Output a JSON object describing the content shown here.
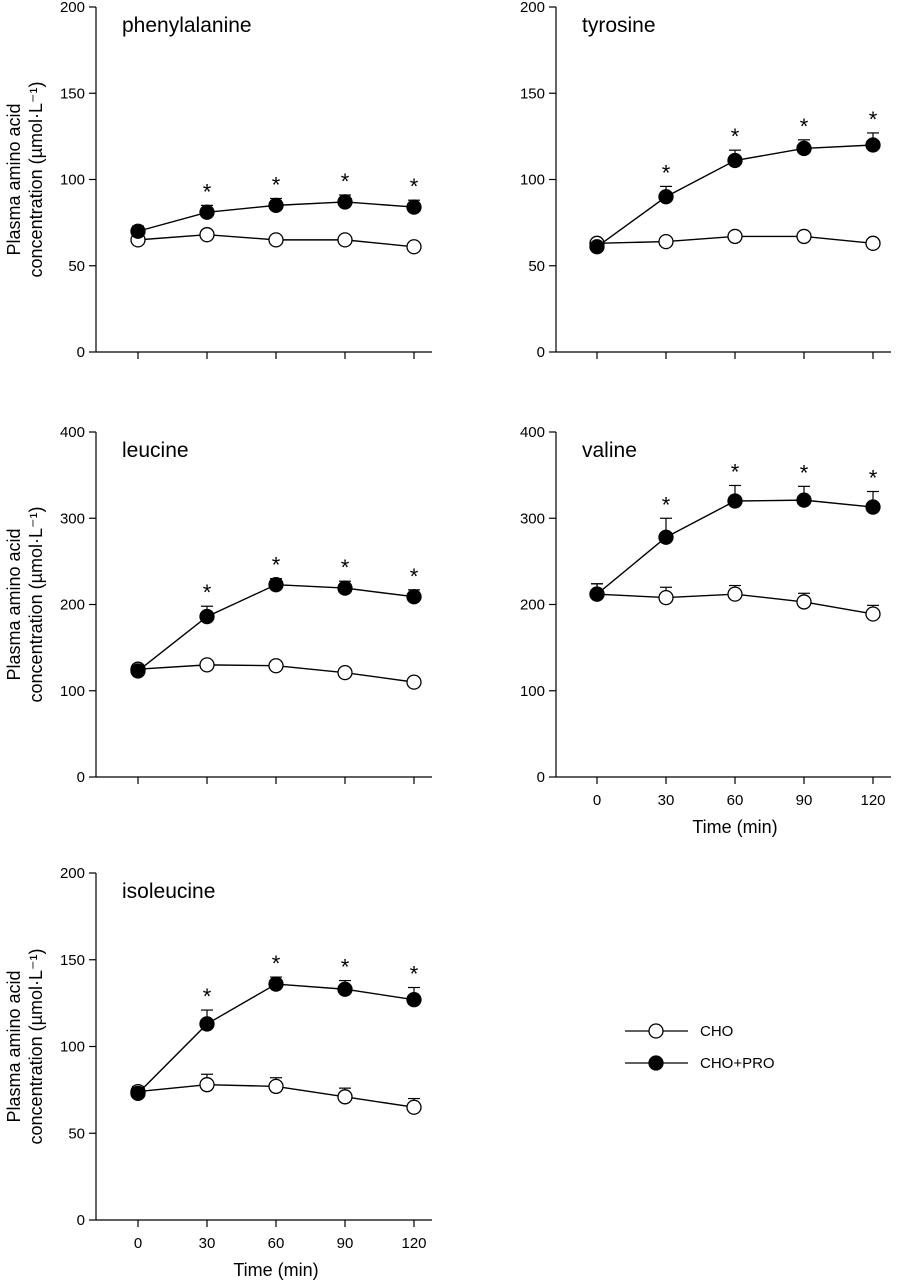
{
  "chart_data": [
    {
      "type": "line",
      "title": "phenylalanine",
      "x": [
        0,
        30,
        60,
        90,
        120
      ],
      "show_x_ticklabels": false,
      "xlabel": "",
      "ylabel": [
        "Plasma amino acid",
        "concentration (µmol·L⁻¹)"
      ],
      "ylim": [
        0,
        200
      ],
      "yticks": [
        0,
        50,
        100,
        150,
        200
      ],
      "series": [
        {
          "name": "CHO",
          "values": [
            65,
            68,
            65,
            65,
            61
          ],
          "err": [
            2,
            2,
            2,
            2,
            2
          ],
          "marker": "open"
        },
        {
          "name": "CHO+PRO",
          "values": [
            70,
            81,
            85,
            87,
            84
          ],
          "err": [
            3,
            4,
            4,
            4,
            4
          ],
          "marker": "filled"
        }
      ],
      "significant": [
        false,
        true,
        true,
        true,
        true
      ]
    },
    {
      "type": "line",
      "title": "tyrosine",
      "x": [
        0,
        30,
        60,
        90,
        120
      ],
      "show_x_ticklabels": false,
      "xlabel": "",
      "ylabel": [],
      "ylim": [
        0,
        200
      ],
      "yticks": [
        0,
        50,
        100,
        150,
        200
      ],
      "series": [
        {
          "name": "CHO",
          "values": [
            63,
            64,
            67,
            67,
            63
          ],
          "err": [
            2,
            2,
            2,
            2,
            2
          ],
          "marker": "open"
        },
        {
          "name": "CHO+PRO",
          "values": [
            61,
            90,
            111,
            118,
            120
          ],
          "err": [
            2,
            6,
            6,
            5,
            7
          ],
          "marker": "filled"
        }
      ],
      "significant": [
        false,
        true,
        true,
        true,
        true
      ]
    },
    {
      "type": "line",
      "title": "leucine",
      "x": [
        0,
        30,
        60,
        90,
        120
      ],
      "show_x_ticklabels": false,
      "xlabel": "",
      "ylabel": [
        "Plasma amino acid",
        "concentration (µmol·L⁻¹)"
      ],
      "ylim": [
        0,
        400
      ],
      "yticks": [
        0,
        100,
        200,
        300,
        400
      ],
      "series": [
        {
          "name": "CHO",
          "values": [
            125,
            130,
            129,
            121,
            110
          ],
          "err": [
            5,
            5,
            5,
            5,
            5
          ],
          "marker": "open"
        },
        {
          "name": "CHO+PRO",
          "values": [
            123,
            186,
            223,
            219,
            209
          ],
          "err": [
            5,
            12,
            7,
            8,
            8
          ],
          "marker": "filled"
        }
      ],
      "significant": [
        false,
        true,
        true,
        true,
        true
      ]
    },
    {
      "type": "line",
      "title": "valine",
      "x": [
        0,
        30,
        60,
        90,
        120
      ],
      "show_x_ticklabels": true,
      "xlabel": "Time (min)",
      "ylabel": [],
      "ylim": [
        0,
        400
      ],
      "yticks": [
        0,
        100,
        200,
        300,
        400
      ],
      "series": [
        {
          "name": "CHO",
          "values": [
            212,
            208,
            212,
            203,
            189
          ],
          "err": [
            12,
            12,
            10,
            10,
            10
          ],
          "marker": "open"
        },
        {
          "name": "CHO+PRO",
          "values": [
            212,
            278,
            320,
            321,
            313
          ],
          "err": [
            12,
            22,
            18,
            16,
            18
          ],
          "marker": "filled"
        }
      ],
      "significant": [
        false,
        true,
        true,
        true,
        true
      ]
    },
    {
      "type": "line",
      "title": "isoleucine",
      "x": [
        0,
        30,
        60,
        90,
        120
      ],
      "show_x_ticklabels": true,
      "xlabel": "Time (min)",
      "ylabel": [
        "Plasma amino acid",
        "concentration (µmol·L⁻¹)"
      ],
      "ylim": [
        0,
        200
      ],
      "yticks": [
        0,
        50,
        100,
        150,
        200
      ],
      "series": [
        {
          "name": "CHO",
          "values": [
            74,
            78,
            77,
            71,
            65
          ],
          "err": [
            3,
            6,
            5,
            5,
            5
          ],
          "marker": "open"
        },
        {
          "name": "CHO+PRO",
          "values": [
            73,
            113,
            136,
            133,
            127
          ],
          "err": [
            3,
            8,
            4,
            5,
            7
          ],
          "marker": "filled"
        }
      ],
      "significant": [
        false,
        true,
        true,
        true,
        true
      ]
    }
  ],
  "legend": {
    "placement": "bottom-right",
    "items": [
      {
        "label": "CHO",
        "marker": "open"
      },
      {
        "label": "CHO+PRO",
        "marker": "filled"
      }
    ]
  },
  "significance_symbol": "*"
}
